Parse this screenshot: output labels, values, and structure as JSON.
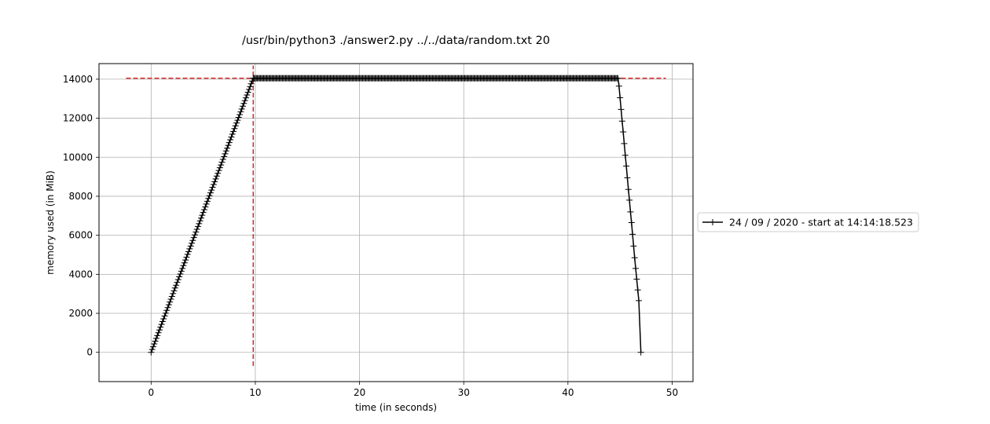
{
  "chart_data": {
    "type": "line",
    "title": "/usr/bin/python3 ./answer2.py ../../data/random.txt 20",
    "xlabel": "time (in seconds)",
    "ylabel": "memory used (in MiB)",
    "xlim": [
      -5,
      52
    ],
    "ylim": [
      -1500,
      14800
    ],
    "xticks": [
      0,
      10,
      20,
      30,
      40,
      50
    ],
    "yticks": [
      0,
      2000,
      4000,
      6000,
      8000,
      10000,
      12000,
      14000
    ],
    "grid": true,
    "legend_position": "right-outside",
    "series": [
      {
        "name": "24 / 09 / 2020 - start at 14:14:18.523",
        "color": "#000000",
        "marker": "plus",
        "ramp_up": {
          "x_start": 0.0,
          "x_end": 9.8,
          "y_start": 0,
          "y_end": 14050,
          "samples": 98
        },
        "plateau": {
          "x_start": 9.8,
          "x_end": 44.8,
          "y": 14050,
          "samples": 350
        },
        "ramp_down": {
          "x": [
            44.8,
            44.9,
            45.0,
            45.1,
            45.2,
            45.3,
            45.4,
            45.5,
            45.6,
            45.7,
            45.8,
            45.9,
            46.0,
            46.1,
            46.2,
            46.3,
            46.4,
            46.5,
            46.6,
            46.7,
            46.8,
            47.0
          ],
          "y": [
            14050,
            13650,
            13050,
            12450,
            11850,
            11300,
            10700,
            10100,
            9550,
            8950,
            8350,
            7800,
            7200,
            6650,
            6050,
            5450,
            4850,
            4300,
            3750,
            3200,
            2650,
            0
          ]
        }
      }
    ],
    "reference_lines": [
      {
        "orientation": "horizontal",
        "value": 14050,
        "from": -2.4,
        "to": 49.4,
        "color": "#d62728",
        "style": "dashed"
      },
      {
        "orientation": "vertical",
        "value": 9.8,
        "from": -700,
        "to": 14700,
        "color": "#d62728",
        "style": "dashed"
      }
    ]
  }
}
